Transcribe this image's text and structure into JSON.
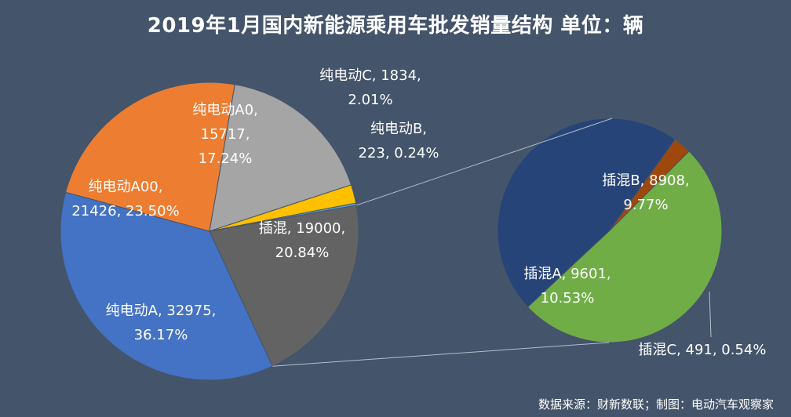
{
  "title": "2019年1月国内新能源乘用车批发销量结构  单位：辆",
  "source": "数据来源：财新数联；制图：电动汽车观察家",
  "chart_data": {
    "type": "pie",
    "subtype": "pie-of-pie",
    "title": "2019年1月国内新能源乘用车批发销量结构  单位：辆",
    "unit": "辆",
    "main_pie": [
      {
        "name": "纯电动A",
        "value": 32975,
        "percent": "36.17%",
        "color": "#4472c4",
        "label_lines": [
          "纯电动A, 32975,",
          "36.17%"
        ]
      },
      {
        "name": "纯电动A00",
        "value": 21426,
        "percent": "23.50%",
        "color": "#ed7d31",
        "label_lines": [
          "纯电动A00,",
          "21426, 23.50%"
        ]
      },
      {
        "name": "纯电动A0",
        "value": 15717,
        "percent": "17.24%",
        "color": "#a5a5a5",
        "label_lines": [
          "纯电动A0,",
          "15717,",
          "17.24%"
        ]
      },
      {
        "name": "纯电动C",
        "value": 1834,
        "percent": "2.01%",
        "color": "#ffc000",
        "label_lines": [
          "纯电动C, 1834,",
          "2.01%"
        ]
      },
      {
        "name": "纯电动B",
        "value": 223,
        "percent": "0.24%",
        "color": "#5b9bd5",
        "label_lines": [
          "纯电动B,",
          "223, 0.24%"
        ]
      },
      {
        "name": "插混",
        "value": 19000,
        "percent": "20.84%",
        "color": "#636363",
        "label_lines": [
          "插混, 19000,",
          "20.84%"
        ]
      }
    ],
    "secondary_pie": [
      {
        "name": "插混A",
        "value": 9601,
        "percent": "10.53%",
        "color": "#70ad47",
        "label_lines": [
          "插混A, 9601,",
          "10.53%"
        ]
      },
      {
        "name": "插混B",
        "value": 8908,
        "percent": "9.77%",
        "color": "#264478",
        "label_lines": [
          "插混B, 8908,",
          "9.77%"
        ]
      },
      {
        "name": "插混C",
        "value": 491,
        "percent": "0.54%",
        "color": "#9e480e",
        "label_lines": [
          "插混C, 491, 0.54%"
        ]
      }
    ],
    "legend": "none",
    "connector_color": "#b4bfcc"
  }
}
